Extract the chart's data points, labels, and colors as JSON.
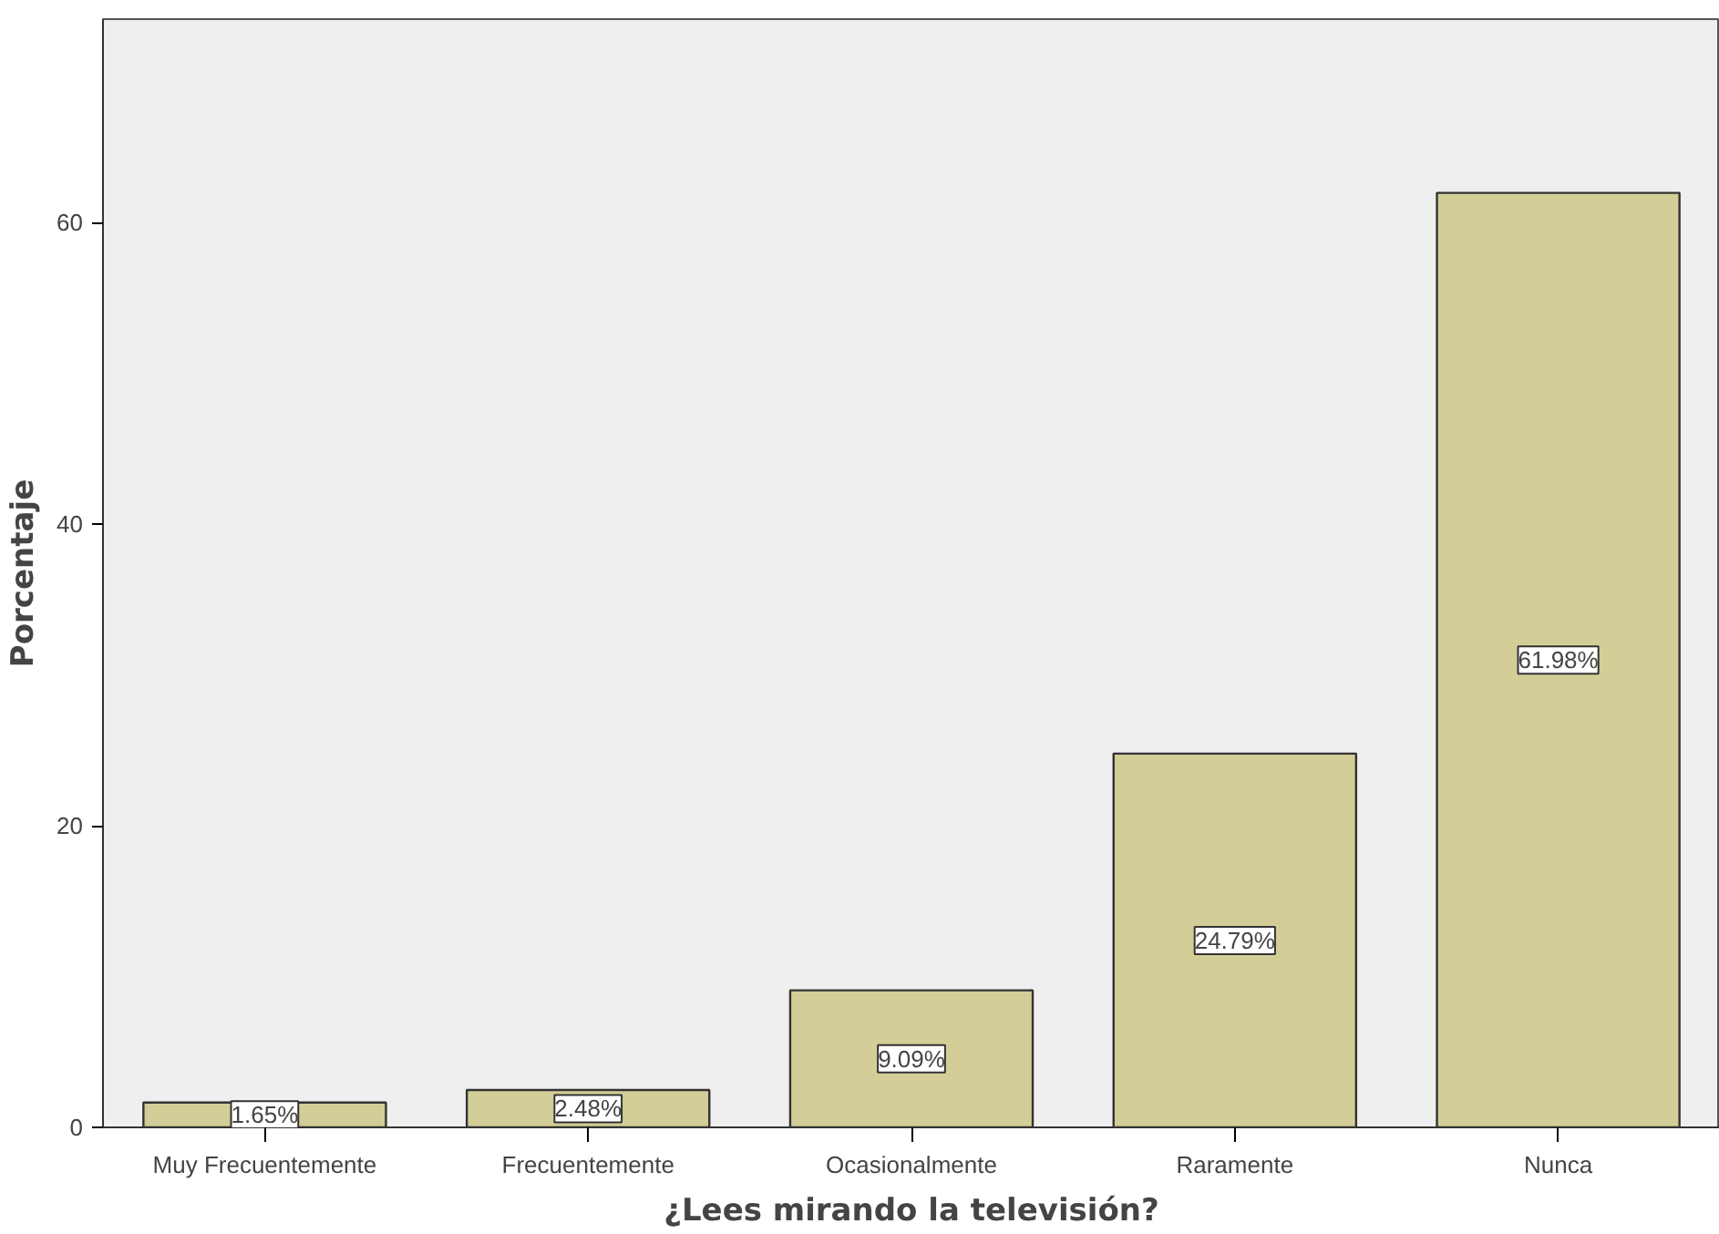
{
  "chart_data": {
    "type": "bar",
    "xlabel": "¿Lees mirando la televisión?",
    "ylabel": "Porcentaje",
    "categories": [
      "Muy Frecuentemente",
      "Frecuentemente",
      "Ocasionalmente",
      "Raramente",
      "Nunca"
    ],
    "values": [
      1.65,
      2.48,
      9.09,
      24.79,
      61.98
    ],
    "value_labels": [
      "1.65%",
      "2.48%",
      "9.09%",
      "24.79%",
      "61.98%"
    ],
    "color": "#d3ce97",
    "ylim": [
      0,
      73.5
    ],
    "yticks": [
      0,
      20,
      40,
      60
    ],
    "grid": false
  }
}
